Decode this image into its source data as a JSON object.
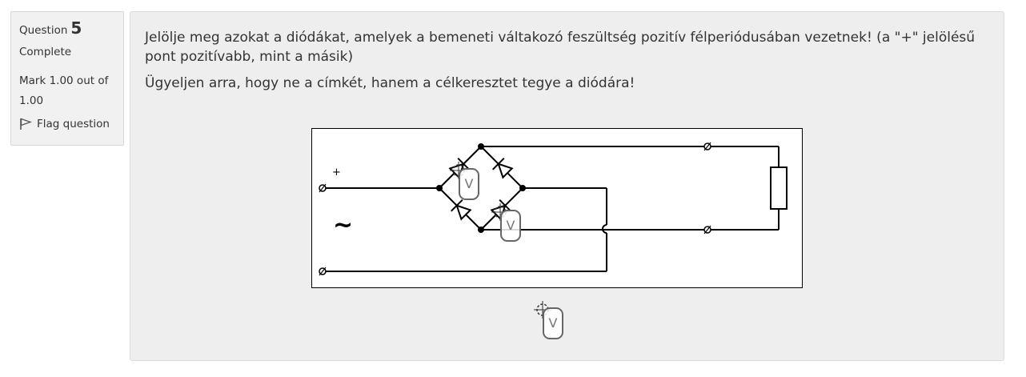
{
  "info": {
    "question_label": "Question",
    "question_number": "5",
    "state": "Complete",
    "grade": "Mark 1.00 out of 1.00",
    "flag_label": "Flag question"
  },
  "question": {
    "text_1": "Jelölje meg azokat a diódákat, amelyek a bemeneti váltakozó feszültség pozitív félperiódusában vezetnek! (a \"+\" jelölésű pont pozitívabb, mint a másik)",
    "text_2": "Ügyeljen arra, hogy ne a címkét, hanem a célkeresztet tegye a diódára!"
  },
  "circuit": {
    "plus_sign": "+",
    "ac_symbol": "~"
  },
  "markers": [
    {
      "label": "V",
      "state": "placed"
    },
    {
      "label": "V",
      "state": "placed"
    },
    {
      "label": "V",
      "state": "unplaced"
    }
  ],
  "colors": {
    "panel_bg": "#eeeeee",
    "info_bg": "#f1f1f1",
    "marker_border": "#666666"
  }
}
